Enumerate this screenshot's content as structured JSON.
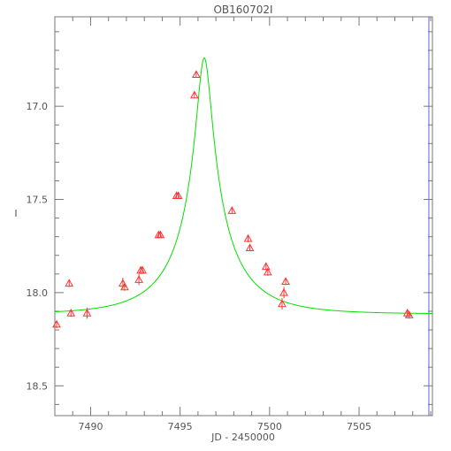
{
  "chart_data": {
    "type": "scatter",
    "title": "OB160702I",
    "xlabel": "JD - 2450000",
    "ylabel": "I",
    "xlim": [
      7488,
      7509.1
    ],
    "ylim": [
      18.66,
      16.52
    ],
    "y_inverted": true,
    "x_ticks": [
      7490,
      7495,
      7500,
      7505
    ],
    "x_tick_labels": [
      "7490",
      "7495",
      "7500",
      "7505"
    ],
    "y_ticks": [
      17.0,
      17.5,
      18.0,
      18.5
    ],
    "y_tick_labels": [
      "17.0",
      "17.5",
      "18.0",
      "18.5"
    ],
    "grid": false,
    "series": [
      {
        "marker": "triangle",
        "color": "#ff3333",
        "points": [
          {
            "x": 7488.1,
            "y": 18.17,
            "err": 0.02
          },
          {
            "x": 7488.8,
            "y": 17.95,
            "err": 0.02
          },
          {
            "x": 7488.9,
            "y": 18.11,
            "err": 0.02
          },
          {
            "x": 7489.8,
            "y": 18.11,
            "err": 0.03
          },
          {
            "x": 7491.8,
            "y": 17.95,
            "err": 0.03
          },
          {
            "x": 7491.9,
            "y": 17.97,
            "err": 0.02
          },
          {
            "x": 7492.7,
            "y": 17.93,
            "err": 0.03
          },
          {
            "x": 7492.8,
            "y": 17.88,
            "err": 0.02
          },
          {
            "x": 7492.9,
            "y": 17.88,
            "err": 0.02
          },
          {
            "x": 7493.8,
            "y": 17.69,
            "err": 0.015
          },
          {
            "x": 7493.9,
            "y": 17.69,
            "err": 0.015
          },
          {
            "x": 7494.8,
            "y": 17.48,
            "err": 0.015
          },
          {
            "x": 7494.9,
            "y": 17.48,
            "err": 0.015
          },
          {
            "x": 7495.8,
            "y": 16.94,
            "err": 0.015
          },
          {
            "x": 7495.9,
            "y": 16.83,
            "err": 0.015
          },
          {
            "x": 7497.9,
            "y": 17.56,
            "err": 0.015
          },
          {
            "x": 7498.8,
            "y": 17.71,
            "err": 0.02
          },
          {
            "x": 7498.9,
            "y": 17.76,
            "err": 0.015
          },
          {
            "x": 7499.8,
            "y": 17.86,
            "err": 0.02
          },
          {
            "x": 7499.9,
            "y": 17.89,
            "err": 0.02
          },
          {
            "x": 7500.7,
            "y": 18.06,
            "err": 0.03
          },
          {
            "x": 7500.8,
            "y": 18.0,
            "err": 0.03
          },
          {
            "x": 7500.9,
            "y": 17.94,
            "err": 0.02
          },
          {
            "x": 7507.7,
            "y": 18.11,
            "err": 0.02
          },
          {
            "x": 7507.8,
            "y": 18.12,
            "err": 0.02
          }
        ]
      },
      {
        "kind": "model-curve",
        "color": "#00e000",
        "model": {
          "t0": 7496.35,
          "tE": 3.5,
          "u0": 0.113,
          "baseline_mag": 18.115,
          "peak_mag": 16.74
        }
      }
    ],
    "vertical_line": {
      "x": 7508.9,
      "color": "#6666cc"
    },
    "colors": {
      "axis": "#777777",
      "text": "#555555",
      "points": "#ff3333",
      "model": "#00e000",
      "marker_line": "#6666cc"
    }
  }
}
